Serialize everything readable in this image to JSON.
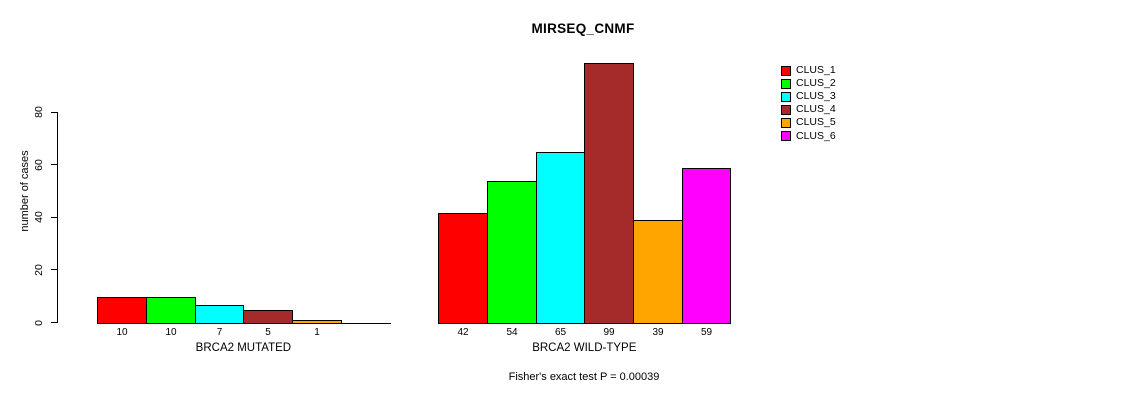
{
  "background": "#FFFFFF",
  "chart_data": {
    "type": "bar",
    "title": "MIRSEQ_CNMF",
    "ylabel": "number of cases",
    "xlabel": "",
    "ylim": [
      0,
      100
    ],
    "yticks": [
      0,
      20,
      40,
      60,
      80
    ],
    "grid": false,
    "legend_position": "top-right",
    "categories": [
      "BRCA2 MUTATED",
      "BRCA2 WILD-TYPE"
    ],
    "series": [
      {
        "name": "CLUS_1",
        "color": "#FF0000",
        "values": [
          10,
          42
        ]
      },
      {
        "name": "CLUS_2",
        "color": "#00FF00",
        "values": [
          10,
          54
        ]
      },
      {
        "name": "CLUS_3",
        "color": "#00FFFF",
        "values": [
          7,
          65
        ]
      },
      {
        "name": "CLUS_4",
        "color": "#A52A2A",
        "values": [
          5,
          99
        ]
      },
      {
        "name": "CLUS_5",
        "color": "#FFA500",
        "values": [
          1,
          39
        ]
      },
      {
        "name": "CLUS_6",
        "color": "#FF00FF",
        "values": [
          0,
          59
        ]
      }
    ],
    "bar_value_labels": {
      "BRCA2 MUTATED": [
        "10",
        "10",
        "7",
        "5",
        "1"
      ],
      "BRCA2 WILD-TYPE": [
        "42",
        "54",
        "65",
        "99",
        "39",
        "59"
      ]
    },
    "annotation": "Fisher's exact test P = 0.00039",
    "bar_outline_color": "#000000"
  }
}
